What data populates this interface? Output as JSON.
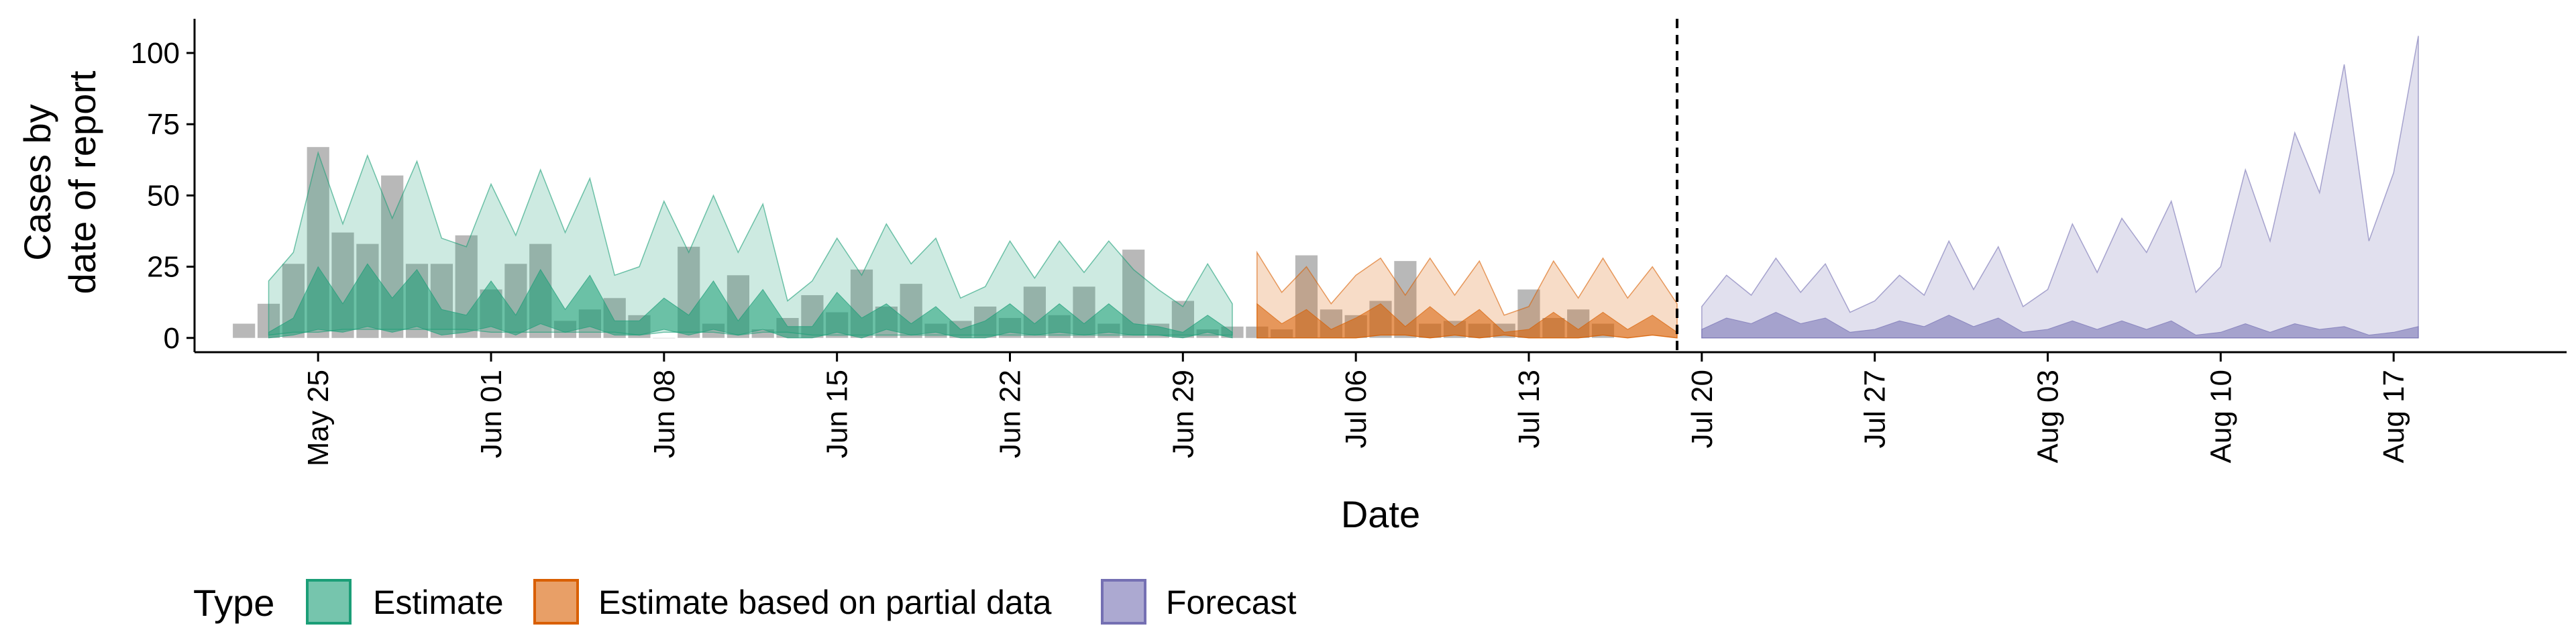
{
  "chart_data": {
    "type": "area",
    "xlabel": "Date",
    "ylabel_line1": "Cases by",
    "ylabel_line2": "date of report",
    "xlim": [
      "2020-05-20",
      "2020-08-24"
    ],
    "ylim": [
      -5,
      112
    ],
    "y_ticks": [
      0,
      25,
      50,
      75,
      100
    ],
    "x_ticks": [
      {
        "date": "2020-05-25",
        "label": "May 25"
      },
      {
        "date": "2020-06-01",
        "label": "Jun 01"
      },
      {
        "date": "2020-06-08",
        "label": "Jun 08"
      },
      {
        "date": "2020-06-15",
        "label": "Jun 15"
      },
      {
        "date": "2020-06-22",
        "label": "Jun 22"
      },
      {
        "date": "2020-06-29",
        "label": "Jun 29"
      },
      {
        "date": "2020-07-06",
        "label": "Jul 06"
      },
      {
        "date": "2020-07-13",
        "label": "Jul 13"
      },
      {
        "date": "2020-07-20",
        "label": "Jul 20"
      },
      {
        "date": "2020-07-27",
        "label": "Jul 27"
      },
      {
        "date": "2020-08-03",
        "label": "Aug 03"
      },
      {
        "date": "2020-08-10",
        "label": "Aug 10"
      },
      {
        "date": "2020-08-17",
        "label": "Aug 17"
      }
    ],
    "vline_date": "2020-07-19",
    "grid": false,
    "legend_position": "bottom",
    "legend_title": "Type",
    "colors": {
      "Estimate": "#1b9e77",
      "Estimate based on partial data": "#d95f02",
      "Forecast": "#7570b3",
      "bars": "#a0a0a0"
    },
    "series": [
      {
        "name": "Estimate",
        "start": "2020-05-23",
        "outer_lower": [
          1,
          2,
          2,
          3,
          3,
          3,
          3,
          3,
          3,
          2,
          2,
          2,
          2,
          2,
          2,
          1,
          2,
          2,
          2,
          1,
          2,
          2,
          1,
          1,
          1,
          1,
          1,
          1,
          1,
          1,
          1,
          1,
          1,
          1,
          1,
          1,
          1,
          1,
          1,
          1
        ],
        "outer_upper": [
          20,
          30,
          65,
          40,
          64,
          42,
          62,
          35,
          32,
          54,
          36,
          59,
          37,
          56,
          22,
          25,
          48,
          30,
          50,
          30,
          47,
          13,
          20,
          35,
          22,
          40,
          26,
          35,
          14,
          18,
          34,
          21,
          34,
          23,
          34,
          24,
          17,
          11,
          26,
          12
        ],
        "inner_lower": [
          0,
          1,
          3,
          2,
          4,
          2,
          4,
          1,
          2,
          4,
          1,
          5,
          2,
          4,
          1,
          1,
          3,
          1,
          3,
          1,
          3,
          0,
          0,
          2,
          0,
          3,
          1,
          2,
          0,
          0,
          2,
          1,
          2,
          1,
          2,
          1,
          1,
          0,
          2,
          0
        ],
        "inner_upper": [
          2,
          7,
          25,
          12,
          26,
          14,
          24,
          10,
          8,
          20,
          8,
          24,
          10,
          22,
          6,
          6,
          14,
          8,
          20,
          6,
          17,
          4,
          4,
          16,
          7,
          12,
          5,
          11,
          3,
          6,
          12,
          5,
          12,
          5,
          12,
          5,
          4,
          2,
          8,
          2
        ]
      },
      {
        "name": "Estimate based on partial data",
        "start": "2020-07-02",
        "outer_lower": [
          0,
          0,
          0,
          0,
          0,
          1,
          1,
          0,
          1,
          0,
          1,
          0,
          0,
          0,
          1,
          0,
          1,
          0
        ],
        "outer_upper": [
          30,
          16,
          25,
          12,
          22,
          28,
          15,
          28,
          15,
          27,
          8,
          11,
          27,
          14,
          28,
          14,
          25,
          12
        ],
        "inner_lower": [
          0,
          0,
          0,
          0,
          0,
          1,
          1,
          0,
          1,
          0,
          1,
          0,
          0,
          0,
          1,
          0,
          1,
          0
        ],
        "inner_upper": [
          12,
          5,
          10,
          3,
          7,
          12,
          4,
          11,
          4,
          10,
          2,
          3,
          9,
          3,
          9,
          3,
          8,
          2
        ]
      },
      {
        "name": "Forecast",
        "start": "2020-07-20",
        "outer_lower": [
          0,
          0,
          0,
          0,
          0,
          0,
          0,
          0,
          0,
          0,
          0,
          0,
          0,
          0,
          0,
          0,
          0,
          0,
          0,
          0,
          0,
          0,
          0,
          0,
          0,
          0,
          0,
          0,
          0,
          0
        ],
        "outer_upper": [
          11,
          22,
          15,
          28,
          16,
          26,
          9,
          13,
          22,
          15,
          34,
          17,
          32,
          11,
          17,
          40,
          23,
          42,
          30,
          48,
          16,
          25,
          59,
          34,
          72,
          51,
          96,
          34,
          58,
          106
        ],
        "inner_lower": [
          0,
          0,
          0,
          0,
          0,
          0,
          0,
          0,
          0,
          0,
          0,
          0,
          0,
          0,
          0,
          0,
          0,
          0,
          0,
          0,
          0,
          0,
          0,
          0,
          0,
          0,
          0,
          0,
          0,
          0
        ],
        "inner_upper": [
          3,
          7,
          5,
          9,
          5,
          7,
          2,
          3,
          6,
          4,
          8,
          4,
          7,
          2,
          3,
          6,
          3,
          6,
          3,
          6,
          1,
          2,
          5,
          2,
          5,
          3,
          4,
          1,
          2,
          4
        ]
      }
    ],
    "reported_cases": {
      "start": "2020-05-22",
      "values": [
        5,
        12,
        26,
        67,
        37,
        33,
        57,
        26,
        26,
        36,
        17,
        26,
        33,
        6,
        10,
        14,
        8,
        0,
        32,
        5,
        22,
        3,
        7,
        15,
        9,
        24,
        11,
        19,
        5,
        6,
        11,
        7,
        18,
        8,
        18,
        5,
        31,
        5,
        13,
        3,
        4,
        4,
        3,
        29,
        10,
        8,
        13,
        27,
        5,
        6,
        5,
        5,
        17,
        7,
        10,
        5
      ]
    }
  },
  "legend": {
    "title": "Type",
    "items": [
      {
        "label": "Estimate",
        "color": "#1b9e77"
      },
      {
        "label": "Estimate based on partial data",
        "color": "#d95f02"
      },
      {
        "label": "Forecast",
        "color": "#7570b3"
      }
    ]
  }
}
